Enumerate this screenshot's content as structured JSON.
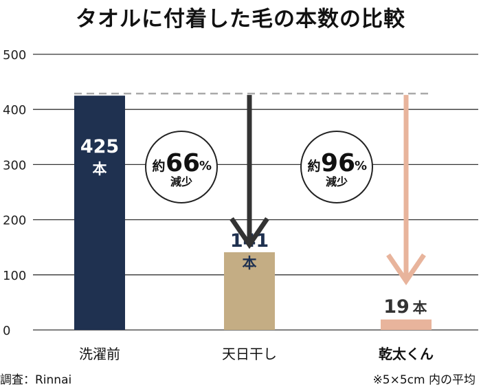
{
  "chart_data": {
    "type": "bar",
    "title": "タオルに付着した毛の本数の比較",
    "categories": [
      "洗濯前",
      "天日干し",
      "乾太くん"
    ],
    "values": [
      425,
      141,
      19
    ],
    "value_unit": "本",
    "bar_colors": [
      "#1f3150",
      "#c4ad84",
      "#e8b49c"
    ],
    "category_bold": [
      false,
      false,
      true
    ],
    "ylim": [
      0,
      500
    ],
    "yticks": [
      0,
      100,
      200,
      300,
      400,
      500
    ],
    "grid": true,
    "annotations": [
      {
        "prefix": "約",
        "value": "66",
        "suffix": "%",
        "label": "減少",
        "arrow_color": "#333333"
      },
      {
        "prefix": "約",
        "value": "96",
        "suffix": "%",
        "label": "減少",
        "arrow_color": "#e8b49c"
      }
    ]
  },
  "notes": {
    "left": "調査：Rinnai",
    "right": "※5×5cm 内の平均"
  }
}
